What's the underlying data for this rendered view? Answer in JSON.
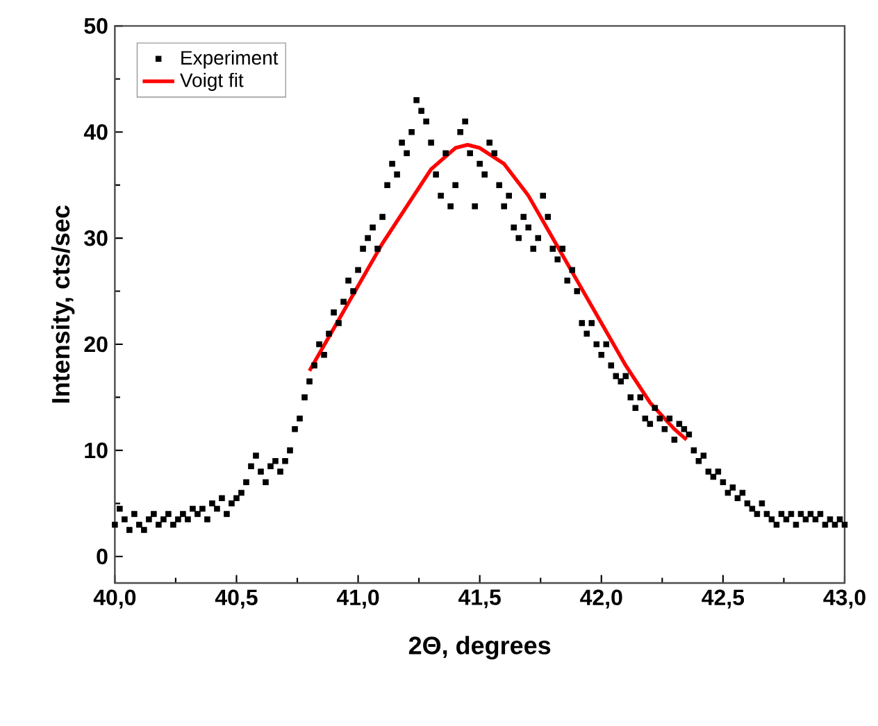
{
  "chart_data": {
    "type": "scatter",
    "xlabel": "2Θ, degrees",
    "ylabel": "Intensity, cts/sec",
    "xlim": [
      40,
      43
    ],
    "ylim": [
      -2.5,
      50
    ],
    "xticks": [
      {
        "value": 40,
        "label": "40,0"
      },
      {
        "value": 40.5,
        "label": "40,5"
      },
      {
        "value": 41,
        "label": "41,0"
      },
      {
        "value": 41.5,
        "label": "41,5"
      },
      {
        "value": 42,
        "label": "42,0"
      },
      {
        "value": 42.5,
        "label": "42,5"
      },
      {
        "value": 43,
        "label": "43,0"
      }
    ],
    "yticks": [
      0,
      10,
      20,
      30,
      40,
      50
    ],
    "legend": "top left",
    "grid": false,
    "series": [
      {
        "name": "Experiment",
        "marker": "square",
        "color": "#000000",
        "x": [
          40.0,
          40.02,
          40.04,
          40.06,
          40.08,
          40.1,
          40.12,
          40.14,
          40.16,
          40.18,
          40.2,
          40.22,
          40.24,
          40.26,
          40.28,
          40.3,
          40.32,
          40.34,
          40.36,
          40.38,
          40.4,
          40.42,
          40.44,
          40.46,
          40.48,
          40.5,
          40.52,
          40.54,
          40.56,
          40.58,
          40.6,
          40.62,
          40.64,
          40.66,
          40.68,
          40.7,
          40.72,
          40.74,
          40.76,
          40.78,
          40.8,
          40.82,
          40.84,
          40.86,
          40.88,
          40.9,
          40.92,
          40.94,
          40.96,
          40.98,
          41.0,
          41.02,
          41.04,
          41.06,
          41.08,
          41.1,
          41.12,
          41.14,
          41.16,
          41.18,
          41.2,
          41.22,
          41.24,
          41.26,
          41.28,
          41.3,
          41.32,
          41.34,
          41.36,
          41.38,
          41.4,
          41.42,
          41.44,
          41.46,
          41.48,
          41.5,
          41.52,
          41.54,
          41.56,
          41.58,
          41.6,
          41.62,
          41.64,
          41.66,
          41.68,
          41.7,
          41.72,
          41.74,
          41.76,
          41.78,
          41.8,
          41.82,
          41.84,
          41.86,
          41.88,
          41.9,
          41.92,
          41.94,
          41.96,
          41.98,
          42.0,
          42.02,
          42.04,
          42.06,
          42.08,
          42.1,
          42.12,
          42.14,
          42.16,
          42.18,
          42.2,
          42.22,
          42.24,
          42.26,
          42.28,
          42.3,
          42.32,
          42.34,
          42.36,
          42.38,
          42.4,
          42.42,
          42.44,
          42.46,
          42.48,
          42.5,
          42.52,
          42.54,
          42.56,
          42.58,
          42.6,
          42.62,
          42.64,
          42.66,
          42.68,
          42.7,
          42.72,
          42.74,
          42.76,
          42.78,
          42.8,
          42.82,
          42.84,
          42.86,
          42.88,
          42.9,
          42.92,
          42.94,
          42.96,
          42.98,
          43.0
        ],
        "values": [
          3,
          4.5,
          3.5,
          2.5,
          4,
          3,
          2.5,
          3.5,
          4,
          3,
          3.5,
          4,
          3,
          3.5,
          4,
          3.5,
          4.5,
          4,
          4.5,
          3.5,
          5,
          4.5,
          5.5,
          4,
          5,
          5.5,
          6,
          7,
          8.5,
          9.5,
          8,
          7,
          8.5,
          9,
          8,
          9,
          10,
          12,
          13,
          15,
          16.5,
          18,
          20,
          19,
          21,
          23,
          22,
          24,
          26,
          25,
          27,
          29,
          30,
          31,
          29,
          32,
          35,
          37,
          36,
          39,
          38,
          40,
          43,
          42,
          41,
          39,
          36,
          34,
          38,
          33,
          35,
          40,
          41,
          38,
          33,
          37,
          36,
          39,
          38,
          35,
          33,
          34,
          31,
          30,
          32,
          31,
          29,
          30,
          34,
          32,
          29,
          28,
          29,
          26,
          27,
          25,
          22,
          21,
          22,
          20,
          19,
          20,
          18,
          17,
          16.5,
          17,
          15,
          14,
          15,
          13,
          12.5,
          14,
          13,
          12,
          13,
          11,
          12.5,
          12,
          11.5,
          10,
          9,
          9.5,
          8,
          7.5,
          8,
          7,
          6,
          6.5,
          5.5,
          6,
          5,
          4.5,
          4,
          5,
          4,
          3.5,
          3,
          4,
          3.5,
          4,
          3,
          4,
          3.5,
          4,
          3.5,
          4,
          3,
          3.5,
          3,
          3.5,
          3
        ]
      },
      {
        "name": "Voigt fit",
        "type": "line",
        "line_style": "solid",
        "color": "#ff0000",
        "x": [
          40.8,
          40.9,
          41.0,
          41.1,
          41.2,
          41.3,
          41.4,
          41.45,
          41.5,
          41.6,
          41.7,
          41.8,
          41.9,
          42.0,
          42.1,
          42.2,
          42.3,
          42.35
        ],
        "values": [
          17.5,
          21.5,
          25.5,
          29.5,
          33,
          36.5,
          38.5,
          38.8,
          38.5,
          37,
          34,
          30,
          26,
          22,
          18,
          14.5,
          12,
          11
        ]
      }
    ]
  }
}
